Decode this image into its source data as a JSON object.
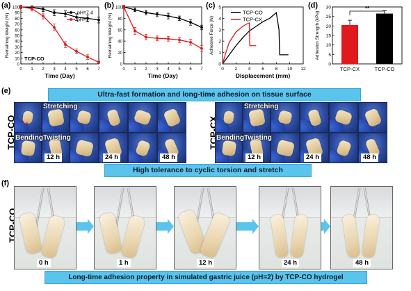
{
  "panels": {
    "a": "(a)",
    "b": "(b)",
    "c": "(c)",
    "d": "(d)",
    "e": "(e)",
    "f": "(f)"
  },
  "chart_data": [
    {
      "id": "a",
      "type": "line",
      "xlabel": "Time (Day)",
      "ylabel": "Remaining Weight (%)",
      "x": [
        0,
        1,
        2,
        3,
        4,
        5,
        6,
        7
      ],
      "xticks": [
        "0",
        "1",
        "2",
        "3",
        "4",
        "5",
        "6",
        "7"
      ],
      "yticks": [
        "0",
        "10",
        "20",
        "30",
        "40",
        "50",
        "60",
        "70",
        "80",
        "90",
        "100"
      ],
      "xlim": [
        0,
        7
      ],
      "ylim": [
        0,
        100
      ],
      "annotation": "TCP-CO",
      "series": [
        {
          "name": "pH=7.4",
          "color": "#000000",
          "values": [
            100,
            99,
            96,
            90,
            88,
            82,
            80,
            77
          ],
          "err": [
            2,
            3,
            4,
            5,
            5,
            6,
            6,
            5
          ]
        },
        {
          "name": "pH=2",
          "color": "#e0191d",
          "values": [
            100,
            97,
            84,
            64,
            34,
            22,
            12,
            3
          ],
          "err": [
            3,
            4,
            5,
            6,
            5,
            4,
            4,
            2
          ]
        }
      ]
    },
    {
      "id": "b",
      "type": "line",
      "xlabel": "Time (Day)",
      "ylabel": "Remaining Weight (%)",
      "x": [
        0,
        1,
        2,
        3,
        4,
        5,
        6,
        7
      ],
      "xticks": [
        "0",
        "1",
        "2",
        "3",
        "4",
        "5",
        "6",
        "7"
      ],
      "yticks": [
        "0",
        "20",
        "40",
        "60",
        "80",
        "100"
      ],
      "xlim": [
        0,
        7
      ],
      "ylim": [
        0,
        100
      ],
      "series": [
        {
          "color": "#000000",
          "values": [
            100,
            95,
            90,
            87,
            84,
            80,
            73,
            64
          ],
          "err": [
            2,
            3,
            4,
            4,
            5,
            4,
            5,
            4
          ]
        },
        {
          "color": "#e0191d",
          "values": [
            100,
            58,
            47,
            45,
            44,
            42,
            38,
            27
          ],
          "err": [
            3,
            6,
            5,
            4,
            4,
            5,
            5,
            5
          ]
        }
      ]
    },
    {
      "id": "c",
      "type": "line",
      "xlabel": "Displacement (mm)",
      "ylabel": "Adhesive Force (N)",
      "xticks": [
        "0",
        "2",
        "4",
        "6",
        "8",
        "10",
        "12"
      ],
      "yticks": [
        "0",
        "1",
        "2",
        "3",
        "4",
        "5"
      ],
      "xlim": [
        0,
        12
      ],
      "ylim": [
        0,
        5
      ],
      "series": [
        {
          "name": "TCP-CO",
          "color": "#000000",
          "x": [
            0,
            1,
            2,
            3,
            4,
            5,
            6,
            7,
            8,
            8.4,
            8.5,
            9.2,
            9.8
          ],
          "y": [
            0,
            0.8,
            1.6,
            2.3,
            2.9,
            3.3,
            3.7,
            4.0,
            4.5,
            3.0,
            0.8,
            0.8,
            0.8
          ]
        },
        {
          "name": "TCP-CX",
          "color": "#e0191d",
          "x": [
            0,
            0.5,
            1,
            2,
            3,
            3.6,
            4.0,
            4.05,
            5.0
          ],
          "y": [
            0,
            1.0,
            1.9,
            2.8,
            3.3,
            3.5,
            3.6,
            1.6,
            1.6
          ]
        }
      ]
    },
    {
      "id": "d",
      "type": "bar",
      "ylabel": "Adhesion Strength (kPa)",
      "categories": [
        "TCP-CX",
        "TCP-CO"
      ],
      "values": [
        20.5,
        26.5
      ],
      "err": [
        2.5,
        1.5
      ],
      "colors": [
        "#e0191d",
        "#000000"
      ],
      "yticks": [
        "0",
        "5",
        "10",
        "15",
        "20",
        "25",
        "30"
      ],
      "ylim": [
        0,
        30
      ],
      "significance": "**"
    }
  ],
  "section_e": {
    "banner_top": "Ultra-fast formation and long-time adhesion on tissue surface",
    "banner_bottom": "High tolerance to cyclic torsion and stretch",
    "left_label": "TCP-CO",
    "right_label": "TCP-CX",
    "stretching": "Stretching",
    "bending": "Bending",
    "twisting": "Twisting",
    "times": [
      "12 h",
      "24 h",
      "48 h"
    ],
    "red_tag": "3 s"
  },
  "section_f": {
    "side_label": "TCP-CO",
    "times": [
      "0 h",
      "1 h",
      "12 h",
      "24 h",
      "48 h"
    ],
    "caption": "Long-time adhesion property in simulated gastric juice (pH=2) by TCP-CO hydrogel"
  }
}
